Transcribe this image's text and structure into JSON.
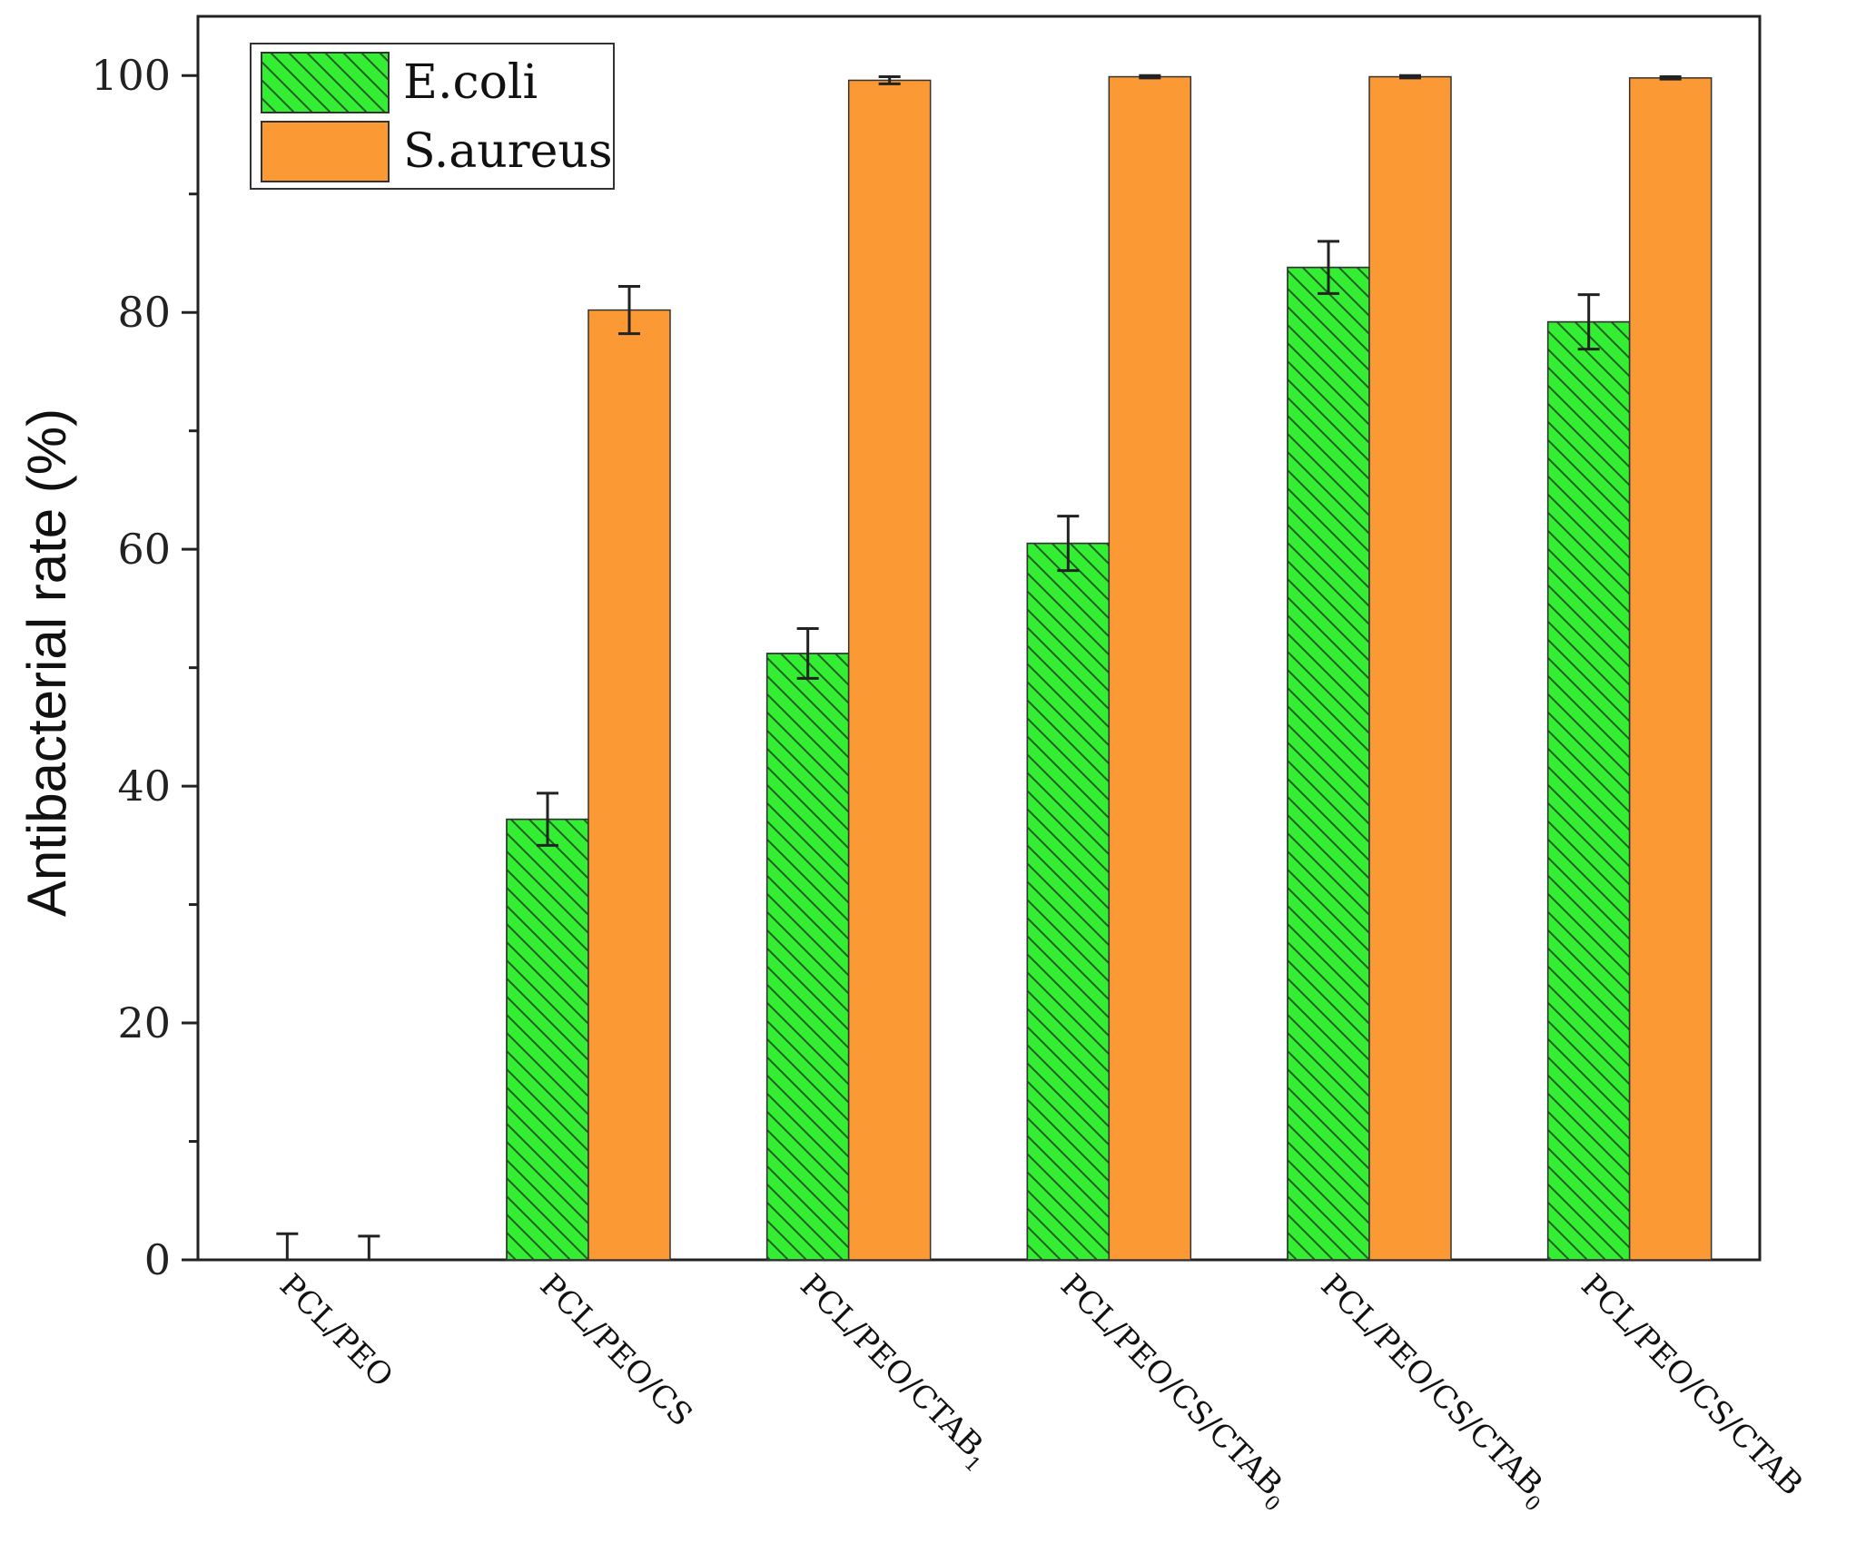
{
  "chart_data": {
    "type": "bar",
    "title": "",
    "xlabel": "",
    "ylabel": "Antibacterial rate (%)",
    "ylim": [
      0,
      105
    ],
    "yticks": [
      0,
      20,
      40,
      60,
      80,
      100
    ],
    "grid": false,
    "legend_position": "top-left",
    "categories": [
      {
        "base": "PCL/PEO",
        "sub": ""
      },
      {
        "base": "PCL/PEO/CS",
        "sub": ""
      },
      {
        "base": "PCL/PEO/CTAB",
        "sub": "1"
      },
      {
        "base": "PCL/PEO/CS/CTAB",
        "sub": "0"
      },
      {
        "base": "PCL/PEO/CS/CTAB",
        "sub": "0"
      },
      {
        "base": "PCL/PEO/CS/CTAB",
        "sub": ""
      }
    ],
    "series": [
      {
        "name": "E.coli",
        "color": "#33ee33",
        "hatch": true,
        "values": [
          0,
          37.2,
          51.2,
          60.5,
          83.8,
          79.2
        ],
        "errors": [
          2.2,
          2.2,
          2.1,
          2.3,
          2.2,
          2.3
        ]
      },
      {
        "name": "S.aureus",
        "color": "#fb9a35",
        "hatch": false,
        "values": [
          0,
          80.2,
          99.6,
          99.9,
          99.9,
          99.8
        ],
        "errors": [
          2.0,
          2.0,
          0.3,
          0.1,
          0.1,
          0.1
        ]
      }
    ]
  }
}
